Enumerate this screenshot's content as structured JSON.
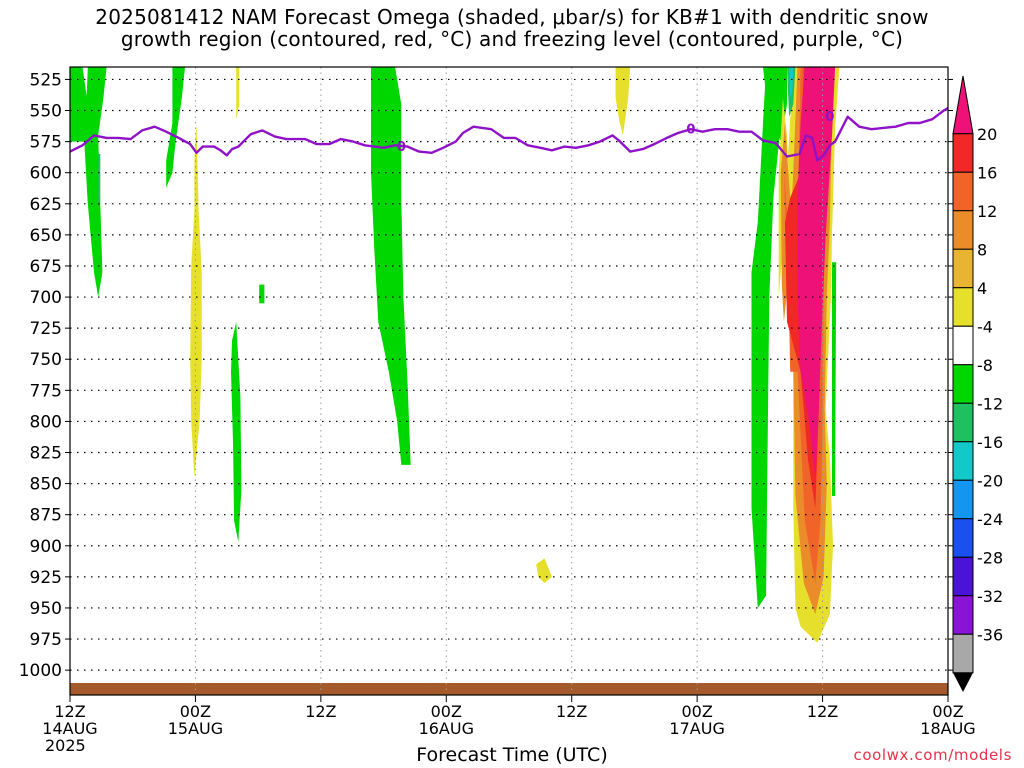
{
  "title": {
    "line1": "2025081412 NAM Forecast Omega (shaded, μbar/s) for KB#1 with dendritic snow",
    "line2": "growth region (contoured, red, °C) and freezing level (contoured, purple, °C)"
  },
  "credit": "coolwx.com/models",
  "chart_data": {
    "type": "heatmap",
    "title": "2025081412 NAM Forecast Omega (shaded, μbar/s) for KB#1 with dendritic snow growth region (contoured, red, °C) and freezing level (contoured, purple, °C)",
    "xlabel": "Forecast Time (UTC)",
    "ylabel": "",
    "x_range_hours": [
      0,
      84
    ],
    "y_range_mb": [
      515,
      1020
    ],
    "y_ticks": [
      525,
      550,
      575,
      600,
      625,
      650,
      675,
      700,
      725,
      750,
      775,
      800,
      825,
      850,
      875,
      900,
      925,
      950,
      975,
      1000
    ],
    "x_ticks": [
      {
        "hour": 0,
        "lines": [
          "12Z",
          "14AUG",
          "2025"
        ]
      },
      {
        "hour": 12,
        "lines": [
          "00Z",
          "15AUG"
        ]
      },
      {
        "hour": 24,
        "lines": [
          "12Z"
        ]
      },
      {
        "hour": 36,
        "lines": [
          "00Z",
          "16AUG"
        ]
      },
      {
        "hour": 48,
        "lines": [
          "12Z"
        ]
      },
      {
        "hour": 60,
        "lines": [
          "00Z",
          "17AUG"
        ]
      },
      {
        "hour": 72,
        "lines": [
          "12Z"
        ]
      },
      {
        "hour": 84,
        "lines": [
          "00Z",
          "18AUG"
        ]
      }
    ],
    "grid": true,
    "colorbar": {
      "labels": [
        "20",
        "16",
        "12",
        "8",
        "4",
        "-4",
        "-8",
        "-12",
        "-16",
        "-20",
        "-24",
        "-28",
        "-32",
        "-36"
      ],
      "bins": [
        {
          "color": "#ee1177"
        },
        {
          "color": "#f02828"
        },
        {
          "color": "#f0642a"
        },
        {
          "color": "#eb8c2a"
        },
        {
          "color": "#e8b431"
        },
        {
          "color": "#e6df2c"
        },
        {
          "color": "#ffffff"
        },
        {
          "color": "#00d600"
        },
        {
          "color": "#1ec060"
        },
        {
          "color": "#12c8c8"
        },
        {
          "color": "#1496f0"
        },
        {
          "color": "#1a50f0"
        },
        {
          "color": "#4a14d6"
        },
        {
          "color": "#8a14d6"
        },
        {
          "color": "#a8a8a8"
        }
      ]
    },
    "freezing_level": {
      "color": "#9012c8",
      "label": "0",
      "points": [
        [
          0,
          583
        ],
        [
          1.2,
          578
        ],
        [
          2.3,
          570
        ],
        [
          3.5,
          572
        ],
        [
          4.6,
          572
        ],
        [
          5.8,
          573
        ],
        [
          6.9,
          566
        ],
        [
          8.1,
          563
        ],
        [
          9.2,
          567
        ],
        [
          10.4,
          572
        ],
        [
          11.5,
          577
        ],
        [
          12.1,
          584
        ],
        [
          12.7,
          579
        ],
        [
          13.8,
          579
        ],
        [
          14.4,
          582
        ],
        [
          15,
          586
        ],
        [
          15.5,
          581
        ],
        [
          16.1,
          579
        ],
        [
          17.3,
          569
        ],
        [
          18.4,
          566
        ],
        [
          19.6,
          571
        ],
        [
          20.7,
          573
        ],
        [
          22.5,
          573
        ],
        [
          23.6,
          577
        ],
        [
          24.8,
          577
        ],
        [
          25.9,
          573
        ],
        [
          27.1,
          575
        ],
        [
          28.2,
          578
        ],
        [
          30,
          580
        ],
        [
          31.1,
          578
        ],
        [
          32.3,
          579
        ],
        [
          33.4,
          583
        ],
        [
          34.6,
          584
        ],
        [
          35.7,
          580
        ],
        [
          36.9,
          575
        ],
        [
          37.6,
          568
        ],
        [
          38.6,
          563
        ],
        [
          40.3,
          565
        ],
        [
          41.5,
          572
        ],
        [
          42.6,
          572
        ],
        [
          43.8,
          578
        ],
        [
          45,
          580
        ],
        [
          46.1,
          582
        ],
        [
          47.3,
          579
        ],
        [
          48.4,
          580
        ],
        [
          49.6,
          578
        ],
        [
          50.7,
          575
        ],
        [
          51.9,
          570
        ],
        [
          52.5,
          574
        ],
        [
          53.6,
          583
        ],
        [
          54.8,
          581
        ],
        [
          55.9,
          577
        ],
        [
          57.1,
          572
        ],
        [
          58.2,
          568
        ],
        [
          59.4,
          565
        ],
        [
          60.5,
          567
        ],
        [
          61.7,
          565
        ],
        [
          62.9,
          565
        ],
        [
          64,
          567
        ],
        [
          65.2,
          567
        ],
        [
          66.3,
          574
        ],
        [
          67.5,
          576
        ],
        [
          68.6,
          587
        ],
        [
          69.8,
          585
        ],
        [
          70.4,
          570
        ],
        [
          71,
          572
        ],
        [
          71.5,
          590
        ],
        [
          72.1,
          586
        ],
        [
          72.7,
          578
        ],
        [
          73.2,
          575
        ],
        [
          74.4,
          555
        ],
        [
          75.5,
          563
        ],
        [
          76.7,
          565
        ],
        [
          77.8,
          564
        ],
        [
          79,
          563
        ],
        [
          80.2,
          560
        ],
        [
          81.3,
          560
        ],
        [
          82.5,
          557
        ],
        [
          83.6,
          550
        ],
        [
          84,
          548
        ]
      ],
      "label_points": [
        [
          31.7,
          579
        ],
        [
          59.4,
          565
        ],
        [
          72.7,
          555
        ]
      ]
    },
    "omega_regions": [
      {
        "value": -6,
        "color": "#00d600",
        "points": [
          [
            0,
            515
          ],
          [
            1.2,
            515
          ],
          [
            1.7,
            545
          ],
          [
            2.3,
            575
          ],
          [
            1.2,
            575
          ],
          [
            0,
            575
          ]
        ]
      },
      {
        "value": -6,
        "color": "#00d600",
        "points": [
          [
            1.7,
            515
          ],
          [
            3.5,
            515
          ],
          [
            3.2,
            540
          ],
          [
            2.7,
            570
          ],
          [
            2.9,
            625
          ],
          [
            3.1,
            680
          ],
          [
            2.7,
            700
          ],
          [
            2.3,
            680
          ],
          [
            1.7,
            625
          ],
          [
            1.4,
            580
          ]
        ]
      },
      {
        "value": -6,
        "color": "#00d600",
        "points": [
          [
            9.8,
            515
          ],
          [
            11,
            515
          ],
          [
            10.7,
            540
          ],
          [
            10.1,
            575
          ],
          [
            9.8,
            600
          ],
          [
            9.2,
            612
          ],
          [
            9.2,
            590
          ],
          [
            9.8,
            560
          ]
        ]
      },
      {
        "value": 6,
        "color": "#e6df2c",
        "points": [
          [
            11.9,
            630
          ],
          [
            11.6,
            675
          ],
          [
            11.5,
            750
          ],
          [
            11.6,
            800
          ],
          [
            11.9,
            845
          ],
          [
            12.4,
            800
          ],
          [
            12.6,
            750
          ],
          [
            12.6,
            680
          ],
          [
            12.3,
            630
          ],
          [
            12.1,
            560
          ],
          [
            11.9,
            590
          ]
        ]
      },
      {
        "value": 6,
        "color": "#e6df2c",
        "points": [
          [
            15.9,
            515
          ],
          [
            16.2,
            515
          ],
          [
            16.2,
            545
          ],
          [
            15.9,
            557
          ]
        ]
      },
      {
        "value": -6,
        "color": "#00d600",
        "points": [
          [
            15.5,
            735
          ],
          [
            15.9,
            720
          ],
          [
            16.3,
            780
          ],
          [
            16.4,
            855
          ],
          [
            16.1,
            897
          ],
          [
            15.7,
            880
          ],
          [
            15.6,
            820
          ],
          [
            15.4,
            760
          ]
        ]
      },
      {
        "value": -6,
        "color": "#00d600",
        "points": [
          [
            18.1,
            690
          ],
          [
            18.6,
            690
          ],
          [
            18.6,
            705
          ],
          [
            18.1,
            705
          ]
        ]
      },
      {
        "value": -6,
        "color": "#00d600",
        "points": [
          [
            28.8,
            515
          ],
          [
            31.1,
            515
          ],
          [
            31.7,
            545
          ],
          [
            31.7,
            620
          ],
          [
            31.9,
            700
          ],
          [
            32.3,
            770
          ],
          [
            32.6,
            835
          ],
          [
            31.7,
            835
          ],
          [
            31.3,
            800
          ],
          [
            30.5,
            760
          ],
          [
            29.5,
            720
          ],
          [
            29.1,
            660
          ],
          [
            28.8,
            600
          ]
        ]
      },
      {
        "value": 6,
        "color": "#e6df2c",
        "points": [
          [
            44.6,
            915
          ],
          [
            45.4,
            910
          ],
          [
            46.1,
            925
          ],
          [
            45.4,
            930
          ],
          [
            44.8,
            925
          ]
        ]
      },
      {
        "value": 6,
        "color": "#e6df2c",
        "points": [
          [
            52.2,
            515
          ],
          [
            53.6,
            515
          ],
          [
            53.4,
            540
          ],
          [
            52.9,
            570
          ],
          [
            52.6,
            560
          ],
          [
            52.2,
            540
          ]
        ]
      },
      {
        "value": -6,
        "color": "#00d600",
        "points": [
          [
            65.2,
            680
          ],
          [
            65.8,
            640
          ],
          [
            66.3,
            560
          ],
          [
            66.5,
            530
          ],
          [
            66.3,
            515
          ],
          [
            68,
            515
          ],
          [
            67.9,
            570
          ],
          [
            67.3,
            620
          ],
          [
            66.9,
            700
          ],
          [
            66.7,
            850
          ],
          [
            66.6,
            940
          ],
          [
            65.8,
            950
          ],
          [
            65.2,
            870
          ]
        ]
      },
      {
        "value": -6,
        "color": "#00d600",
        "points": [
          [
            67.1,
            515
          ],
          [
            68.6,
            515
          ],
          [
            68.6,
            545
          ],
          [
            68,
            575
          ],
          [
            67.5,
            560
          ]
        ]
      },
      {
        "value": 6,
        "color": "#e6df2c",
        "points": [
          [
            67.8,
            600
          ],
          [
            68.2,
            540
          ],
          [
            68.6,
            570
          ],
          [
            68.9,
            640
          ],
          [
            69.2,
            760
          ],
          [
            69.2,
            870
          ],
          [
            69.4,
            950
          ],
          [
            69.9,
            965
          ],
          [
            71.5,
            978
          ],
          [
            72.7,
            955
          ],
          [
            73,
            900
          ],
          [
            72.7,
            830
          ],
          [
            72.3,
            790
          ],
          [
            72.8,
            700
          ],
          [
            72.9,
            650
          ],
          [
            73.2,
            565
          ],
          [
            73.6,
            515
          ],
          [
            69.2,
            515
          ],
          [
            68.6,
            600
          ],
          [
            68.2,
            660
          ],
          [
            67.8,
            700
          ]
        ]
      },
      {
        "value": 10,
        "color": "#eb8c2a",
        "points": [
          [
            68,
            600
          ],
          [
            68.4,
            560
          ],
          [
            68.9,
            620
          ],
          [
            69.2,
            760
          ],
          [
            69.4,
            860
          ],
          [
            70.2,
            930
          ],
          [
            71.3,
            955
          ],
          [
            72.1,
            925
          ],
          [
            72.4,
            850
          ],
          [
            72.2,
            790
          ],
          [
            72.4,
            700
          ],
          [
            72.7,
            640
          ],
          [
            73,
            515
          ],
          [
            69.6,
            515
          ],
          [
            68.8,
            680
          ],
          [
            68.3,
            720
          ],
          [
            68.1,
            690
          ]
        ]
      },
      {
        "value": 14,
        "color": "#f0642a",
        "points": [
          [
            68.3,
            600
          ],
          [
            68.6,
            630
          ],
          [
            68.9,
            760
          ],
          [
            69.6,
            760
          ],
          [
            70.3,
            880
          ],
          [
            71.3,
            930
          ],
          [
            71.8,
            880
          ],
          [
            72,
            800
          ],
          [
            72.1,
            700
          ],
          [
            72.3,
            515
          ],
          [
            69.9,
            515
          ],
          [
            69.6,
            650
          ],
          [
            68.8,
            720
          ]
        ]
      },
      {
        "value": 18,
        "color": "#f02828",
        "points": [
          [
            68.4,
            640
          ],
          [
            68.6,
            720
          ],
          [
            69.9,
            760
          ],
          [
            70.6,
            830
          ],
          [
            71.3,
            870
          ],
          [
            71.6,
            800
          ],
          [
            71.8,
            720
          ],
          [
            72,
            515
          ],
          [
            70.2,
            515
          ],
          [
            69.9,
            600
          ],
          [
            68.9,
            620
          ]
        ]
      },
      {
        "value": 22,
        "color": "#ee1177",
        "points": [
          [
            70.3,
            515
          ],
          [
            73.2,
            515
          ],
          [
            72.9,
            570
          ],
          [
            72.3,
            650
          ],
          [
            71.9,
            730
          ],
          [
            71.6,
            800
          ],
          [
            71.3,
            845
          ],
          [
            70.7,
            800
          ],
          [
            69.9,
            760
          ],
          [
            69.6,
            700
          ],
          [
            69.6,
            620
          ],
          [
            69.9,
            560
          ]
        ]
      },
      {
        "value": -10,
        "color": "#1ec060",
        "points": [
          [
            68.6,
            515
          ],
          [
            69.4,
            515
          ],
          [
            69.2,
            545
          ],
          [
            68.8,
            555
          ]
        ]
      },
      {
        "value": -14,
        "color": "#12c8c8",
        "points": [
          [
            68.8,
            515
          ],
          [
            69.2,
            515
          ],
          [
            69.1,
            535
          ],
          [
            68.9,
            540
          ]
        ]
      },
      {
        "value": -6,
        "color": "#00d600",
        "points": [
          [
            72.9,
            672
          ],
          [
            73.3,
            672
          ],
          [
            73.2,
            860
          ],
          [
            72.9,
            860
          ]
        ]
      },
      {
        "value": -10,
        "color": "#1ec060",
        "points": [
          [
            2.7,
            585
          ],
          [
            2.9,
            585
          ],
          [
            2.9,
            625
          ],
          [
            2.7,
            625
          ]
        ]
      }
    ]
  }
}
